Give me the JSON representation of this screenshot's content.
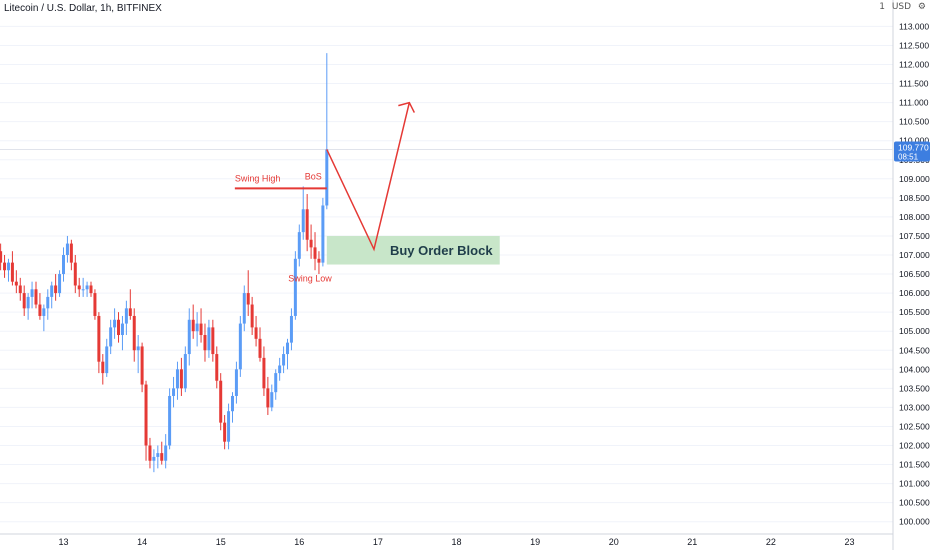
{
  "header": {
    "symbol": "Litecoin / U.S. Dollar, 1h, BITFINEX",
    "scale_toggle": "1",
    "currency": "USD",
    "settings_icon": "gear-icon"
  },
  "colors": {
    "up": "#5b9cf6",
    "down": "#e53935",
    "annotation": "#e53935",
    "order_block": "#c8e6c9",
    "order_block_text": "#1f3d4a",
    "price_tag": "#3d7ee0",
    "grid": "#f0f3fa",
    "axis_text": "#131722"
  },
  "chart_data": {
    "type": "candlestick",
    "y_axis": {
      "min": 100.0,
      "max": 113.0,
      "step": 0.5,
      "ticks": [
        "100.000",
        "100.500",
        "101.000",
        "101.500",
        "102.000",
        "102.500",
        "103.000",
        "103.500",
        "104.000",
        "104.500",
        "105.000",
        "105.500",
        "106.000",
        "106.500",
        "107.000",
        "107.500",
        "108.000",
        "108.500",
        "109.000",
        "109.500",
        "110.000",
        "110.500",
        "111.000",
        "111.500",
        "112.000",
        "112.500",
        "113.000"
      ]
    },
    "x_axis": {
      "labels": [
        "13",
        "14",
        "15",
        "16",
        "17",
        "18",
        "19",
        "20",
        "21",
        "22",
        "23"
      ],
      "label_days": [
        13,
        14,
        15,
        16,
        17,
        18,
        19,
        20,
        21,
        22,
        23
      ]
    },
    "last_price": {
      "value": "109.770",
      "countdown": "08:51",
      "numeric": 109.77
    },
    "candles": [
      [
        12.2,
        107.1,
        107.3,
        106.6,
        106.8
      ],
      [
        12.25,
        106.8,
        107.0,
        106.4,
        106.6
      ],
      [
        12.3,
        106.6,
        106.9,
        106.3,
        106.8
      ],
      [
        12.35,
        106.8,
        107.1,
        106.2,
        106.3
      ],
      [
        12.4,
        106.3,
        106.6,
        106.0,
        106.2
      ],
      [
        12.45,
        106.2,
        106.4,
        105.8,
        106.0
      ],
      [
        12.5,
        106.0,
        106.2,
        105.4,
        105.6
      ],
      [
        12.55,
        105.6,
        106.0,
        105.3,
        105.9
      ],
      [
        12.6,
        105.9,
        106.3,
        105.6,
        106.1
      ],
      [
        12.65,
        106.1,
        106.3,
        105.6,
        105.7
      ],
      [
        12.7,
        105.7,
        106.0,
        105.3,
        105.4
      ],
      [
        12.75,
        105.4,
        105.7,
        105.0,
        105.6
      ],
      [
        12.8,
        105.6,
        106.1,
        105.3,
        105.9
      ],
      [
        12.85,
        105.9,
        106.3,
        105.6,
        106.2
      ],
      [
        12.9,
        106.2,
        106.5,
        105.8,
        106.0
      ],
      [
        12.95,
        106.0,
        106.6,
        105.9,
        106.5
      ],
      [
        13.0,
        106.5,
        107.2,
        106.3,
        107.0
      ],
      [
        13.05,
        107.0,
        107.5,
        106.8,
        107.3
      ],
      [
        13.1,
        107.3,
        107.4,
        106.6,
        106.8
      ],
      [
        13.15,
        106.8,
        107.0,
        106.0,
        106.2
      ],
      [
        13.2,
        106.2,
        106.4,
        105.9,
        106.1
      ],
      [
        13.25,
        106.1,
        106.4,
        105.9,
        106.1
      ],
      [
        13.3,
        106.1,
        106.3,
        105.9,
        106.2
      ],
      [
        13.35,
        106.2,
        106.3,
        105.9,
        106.0
      ],
      [
        13.4,
        106.0,
        106.1,
        105.3,
        105.4
      ],
      [
        13.45,
        105.4,
        105.5,
        103.9,
        104.2
      ],
      [
        13.5,
        104.2,
        104.4,
        103.6,
        103.9
      ],
      [
        13.55,
        103.9,
        104.8,
        103.8,
        104.6
      ],
      [
        13.6,
        104.6,
        105.3,
        104.4,
        105.1
      ],
      [
        13.65,
        105.1,
        105.6,
        104.8,
        105.3
      ],
      [
        13.7,
        105.3,
        105.5,
        104.7,
        104.9
      ],
      [
        13.75,
        104.9,
        105.4,
        104.5,
        105.2
      ],
      [
        13.8,
        105.2,
        105.8,
        104.9,
        105.6
      ],
      [
        13.85,
        105.6,
        106.1,
        105.3,
        105.4
      ],
      [
        13.9,
        105.4,
        105.6,
        104.2,
        104.5
      ],
      [
        13.95,
        104.5,
        104.9,
        103.9,
        104.6
      ],
      [
        14.0,
        104.6,
        104.7,
        103.4,
        103.6
      ],
      [
        14.05,
        103.6,
        103.7,
        101.6,
        102.0
      ],
      [
        14.1,
        102.0,
        102.2,
        101.4,
        101.6
      ],
      [
        14.15,
        101.6,
        101.9,
        101.3,
        101.7
      ],
      [
        14.2,
        101.7,
        102.0,
        101.4,
        101.8
      ],
      [
        14.25,
        101.8,
        102.1,
        101.5,
        101.6
      ],
      [
        14.3,
        101.6,
        102.3,
        101.4,
        102.0
      ],
      [
        14.35,
        102.0,
        103.5,
        101.9,
        103.3
      ],
      [
        14.4,
        103.3,
        103.8,
        103.0,
        103.5
      ],
      [
        14.45,
        103.5,
        104.2,
        103.2,
        104.0
      ],
      [
        14.5,
        104.0,
        104.3,
        103.3,
        103.5
      ],
      [
        14.55,
        103.5,
        104.6,
        103.4,
        104.4
      ],
      [
        14.6,
        104.4,
        105.6,
        104.1,
        105.3
      ],
      [
        14.65,
        105.3,
        105.7,
        104.8,
        105.0
      ],
      [
        14.7,
        105.0,
        105.5,
        104.6,
        105.2
      ],
      [
        14.75,
        105.2,
        105.6,
        104.7,
        104.9
      ],
      [
        14.8,
        104.9,
        105.2,
        104.2,
        104.5
      ],
      [
        14.85,
        104.5,
        105.3,
        104.3,
        105.1
      ],
      [
        14.9,
        105.1,
        105.3,
        104.2,
        104.4
      ],
      [
        14.95,
        104.4,
        104.6,
        103.5,
        103.7
      ],
      [
        15.0,
        103.7,
        103.9,
        102.4,
        102.6
      ],
      [
        15.05,
        102.6,
        102.8,
        101.9,
        102.1
      ],
      [
        15.1,
        102.1,
        103.1,
        101.9,
        102.9
      ],
      [
        15.15,
        102.9,
        103.4,
        102.6,
        103.3
      ],
      [
        15.2,
        103.3,
        104.2,
        103.1,
        104.0
      ],
      [
        15.25,
        104.0,
        105.4,
        103.8,
        105.2
      ],
      [
        15.3,
        105.2,
        106.2,
        105.0,
        106.0
      ],
      [
        15.35,
        106.0,
        106.6,
        105.4,
        105.7
      ],
      [
        15.4,
        105.7,
        105.9,
        104.9,
        105.1
      ],
      [
        15.45,
        105.1,
        105.4,
        104.6,
        104.8
      ],
      [
        15.5,
        104.8,
        105.1,
        104.2,
        104.3
      ],
      [
        15.55,
        104.3,
        104.6,
        103.3,
        103.5
      ],
      [
        15.6,
        103.5,
        103.8,
        102.8,
        103.0
      ],
      [
        15.65,
        103.0,
        103.6,
        102.9,
        103.4
      ],
      [
        15.7,
        103.4,
        104.0,
        103.2,
        103.9
      ],
      [
        15.75,
        103.9,
        104.3,
        103.7,
        104.1
      ],
      [
        15.8,
        104.1,
        104.6,
        103.9,
        104.4
      ],
      [
        15.85,
        104.4,
        104.8,
        104.0,
        104.7
      ],
      [
        15.9,
        104.7,
        105.6,
        104.5,
        105.4
      ],
      [
        15.95,
        105.4,
        107.1,
        105.3,
        106.9
      ],
      [
        16.0,
        106.9,
        107.8,
        106.7,
        107.6
      ],
      [
        16.05,
        107.6,
        108.8,
        107.4,
        108.2
      ],
      [
        16.1,
        108.2,
        108.6,
        107.1,
        107.4
      ],
      [
        16.15,
        107.4,
        107.8,
        106.9,
        107.2
      ],
      [
        16.2,
        107.2,
        107.6,
        106.6,
        106.9
      ],
      [
        16.25,
        106.9,
        107.1,
        106.5,
        106.8
      ],
      [
        16.3,
        106.8,
        108.5,
        106.7,
        108.3
      ],
      [
        16.35,
        108.3,
        112.3,
        108.2,
        109.77
      ]
    ]
  },
  "annotations": {
    "swing_high": "Swing High",
    "bos": "BoS",
    "swing_low": "Swing Low",
    "order_block": "Buy Order Block"
  },
  "overlay": {
    "swing_high_level": 108.75,
    "order_block": {
      "start_day": 16.35,
      "end_day": 18.55,
      "top": 107.5,
      "bottom": 106.75
    },
    "projection": [
      [
        16.35,
        109.77
      ],
      [
        16.95,
        107.15
      ],
      [
        17.4,
        111.0
      ]
    ],
    "bos_line": {
      "start_day": 15.18,
      "end_day": 16.35
    }
  }
}
